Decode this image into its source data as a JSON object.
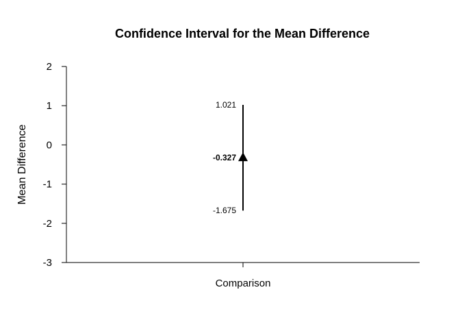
{
  "chart_data": {
    "type": "scatter",
    "title": "Confidence Interval for the Mean Difference",
    "xlabel": "",
    "ylabel": "Mean Difference",
    "categories": [
      "Comparison"
    ],
    "ylim": [
      -3,
      2
    ],
    "yticks": [
      2,
      1,
      0,
      -1,
      -2,
      -3
    ],
    "ytick_labels": [
      "2",
      "1",
      "0",
      "-1",
      "-2",
      "-3"
    ],
    "grid": false,
    "points": [
      {
        "category": "Comparison",
        "estimate": -0.327,
        "lower": -1.675,
        "upper": 1.021,
        "estimate_label": "-0.327",
        "lower_label": "-1.675",
        "upper_label": "1.021"
      }
    ],
    "colors": {
      "marker": "#000000",
      "line": "#000000"
    }
  }
}
